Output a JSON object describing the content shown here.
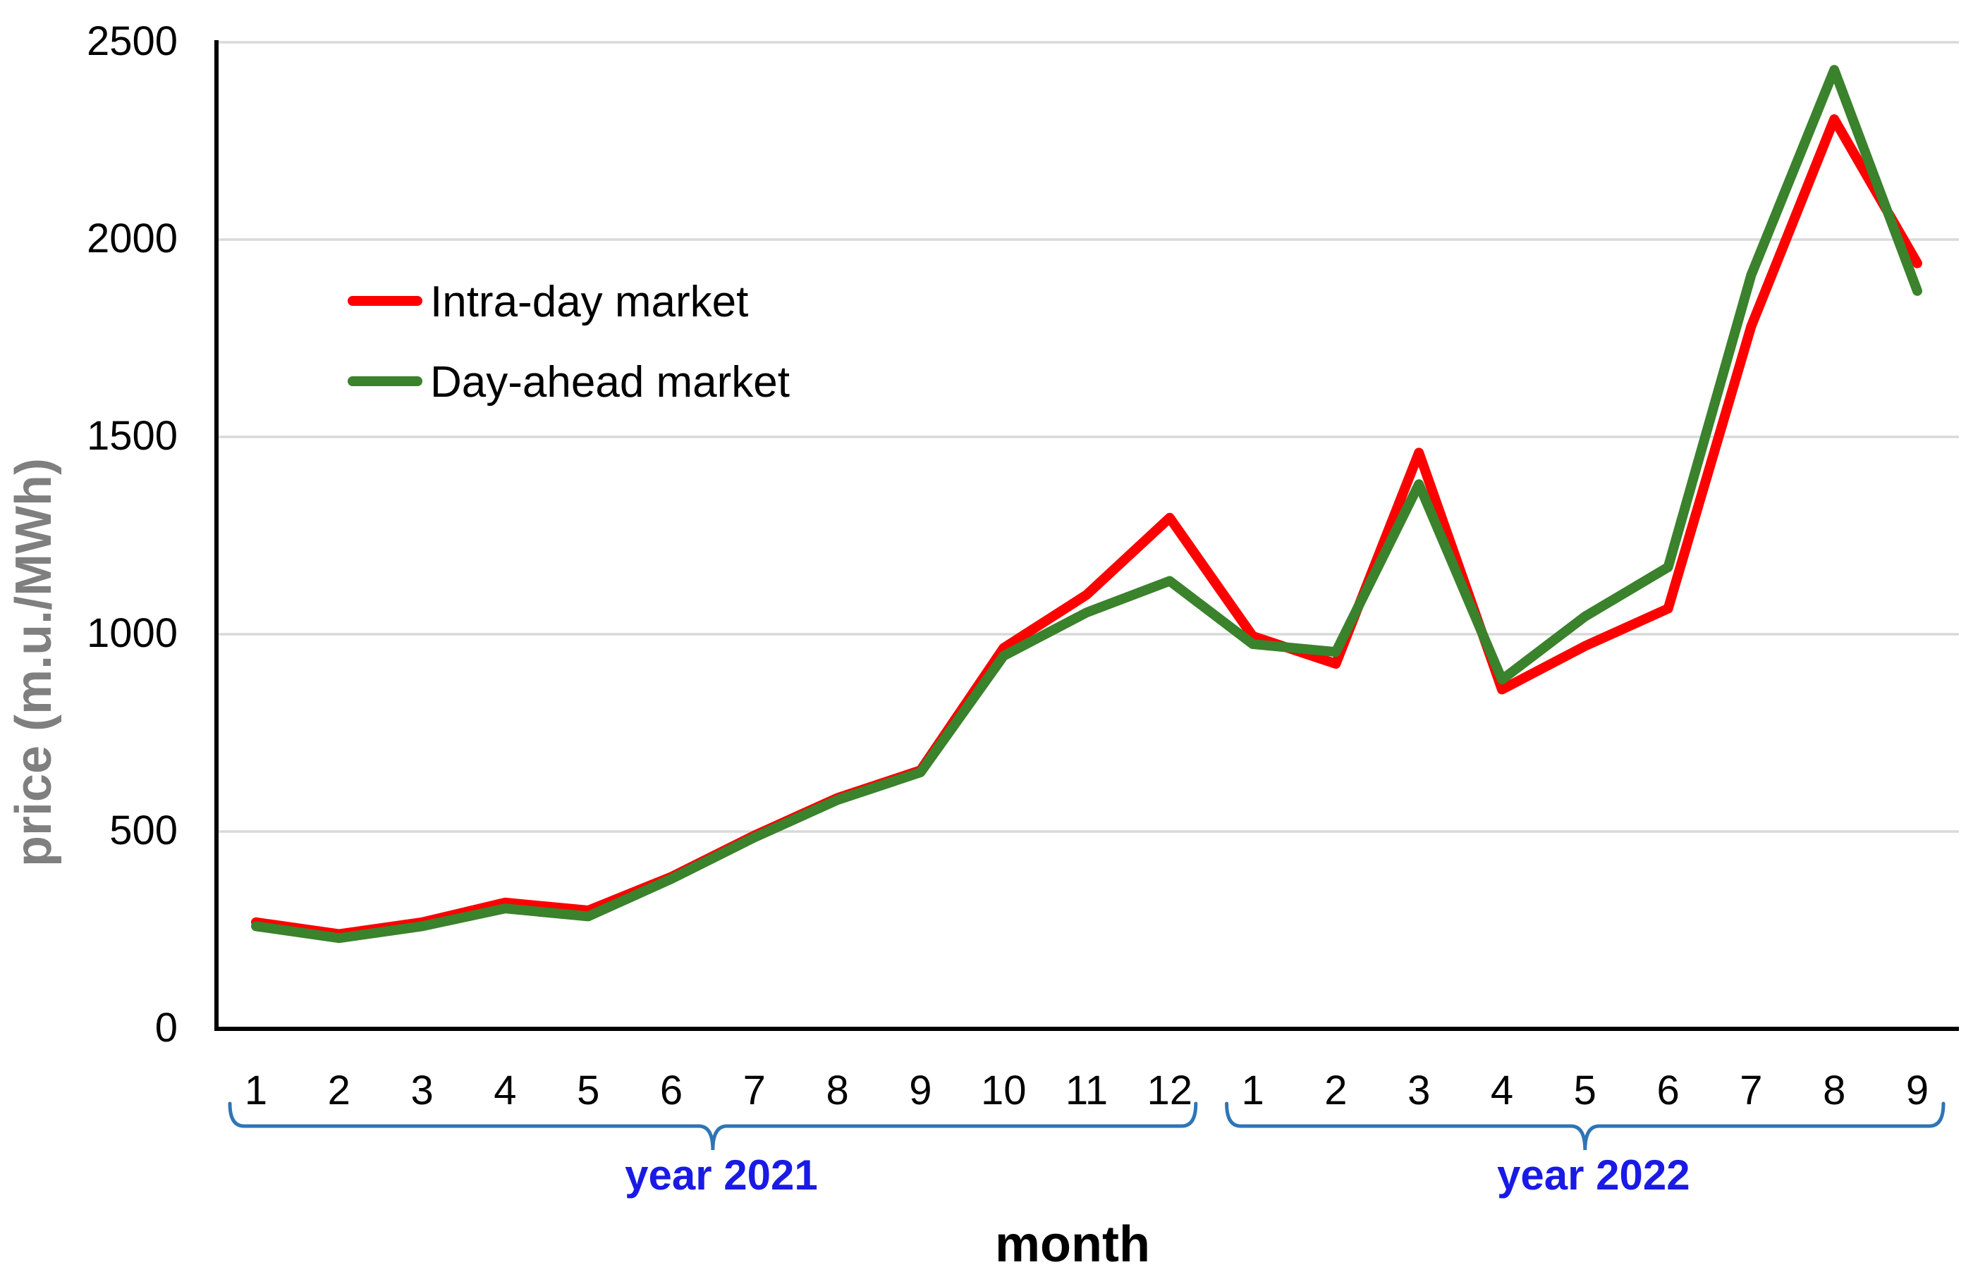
{
  "chart_data": {
    "type": "line",
    "title": "",
    "xlabel": "month",
    "ylabel": "price (m.u./MWh)",
    "ylim": [
      0,
      2500
    ],
    "y_ticks": [
      0,
      500,
      1000,
      1500,
      2000,
      2500
    ],
    "grid": "horizontal",
    "legend_position": "upper-left-inside",
    "x_tick_labels": [
      "1",
      "2",
      "3",
      "4",
      "5",
      "6",
      "7",
      "8",
      "9",
      "10",
      "11",
      "12",
      "1",
      "2",
      "3",
      "4",
      "5",
      "6",
      "7",
      "8",
      "9"
    ],
    "year_groups": [
      {
        "label": "year 2021",
        "from_index": 0,
        "to_index": 11
      },
      {
        "label": "year 2022",
        "from_index": 12,
        "to_index": 20
      }
    ],
    "series": [
      {
        "name": "Intra-day market",
        "color": "#FF0000",
        "values": [
          270,
          240,
          270,
          320,
          300,
          385,
          490,
          585,
          655,
          965,
          1100,
          1295,
          995,
          925,
          1460,
          860,
          970,
          1065,
          1780,
          2305,
          1940
        ]
      },
      {
        "name": "Day-ahead market",
        "color": "#3A822C",
        "values": [
          260,
          230,
          260,
          305,
          285,
          380,
          485,
          580,
          650,
          945,
          1055,
          1135,
          975,
          955,
          1380,
          885,
          1045,
          1170,
          1910,
          2430,
          1870
        ]
      }
    ],
    "colors": {
      "grid": "#D9D9D9",
      "axis": "#000000",
      "brace": "#2E75B6",
      "year_label": "#1A1AE6",
      "y_title": "#7F7F7F",
      "background": "#FFFFFF"
    }
  }
}
